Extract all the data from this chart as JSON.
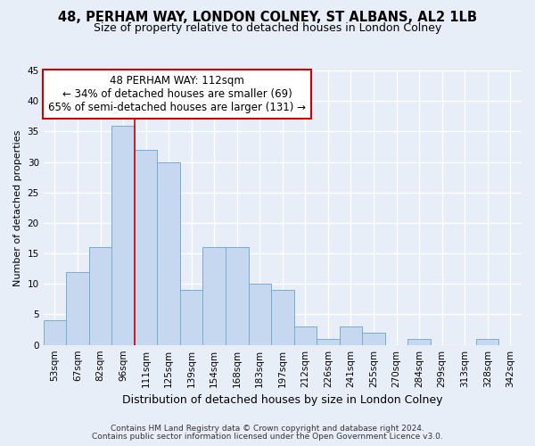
{
  "title": "48, PERHAM WAY, LONDON COLNEY, ST ALBANS, AL2 1LB",
  "subtitle": "Size of property relative to detached houses in London Colney",
  "xlabel": "Distribution of detached houses by size in London Colney",
  "ylabel": "Number of detached properties",
  "categories": [
    "53sqm",
    "67sqm",
    "82sqm",
    "96sqm",
    "111sqm",
    "125sqm",
    "139sqm",
    "154sqm",
    "168sqm",
    "183sqm",
    "197sqm",
    "212sqm",
    "226sqm",
    "241sqm",
    "255sqm",
    "270sqm",
    "284sqm",
    "299sqm",
    "313sqm",
    "328sqm",
    "342sqm"
  ],
  "values": [
    4,
    12,
    16,
    36,
    32,
    30,
    9,
    16,
    16,
    10,
    9,
    3,
    1,
    3,
    2,
    0,
    1,
    0,
    0,
    1,
    0
  ],
  "bar_color": "#c5d8f0",
  "bar_edge_color": "#7aabcf",
  "vline_color": "#cc0000",
  "vline_x": 3.5,
  "ann_line1": "48 PERHAM WAY: 112sqm",
  "ann_line2": "← 34% of detached houses are smaller (69)",
  "ann_line3": "65% of semi-detached houses are larger (131) →",
  "ann_box_facecolor": "#ffffff",
  "ann_box_edgecolor": "#cc0000",
  "footer1": "Contains HM Land Registry data © Crown copyright and database right 2024.",
  "footer2": "Contains public sector information licensed under the Open Government Licence v3.0.",
  "ylim": [
    0,
    45
  ],
  "yticks": [
    0,
    5,
    10,
    15,
    20,
    25,
    30,
    35,
    40,
    45
  ],
  "background_color": "#e8eef8",
  "grid_color": "#ffffff",
  "title_fontsize": 10.5,
  "subtitle_fontsize": 9,
  "xlabel_fontsize": 9,
  "ylabel_fontsize": 8,
  "tick_fontsize": 7.5,
  "ann_fontsize": 8.5,
  "footer_fontsize": 6.5
}
